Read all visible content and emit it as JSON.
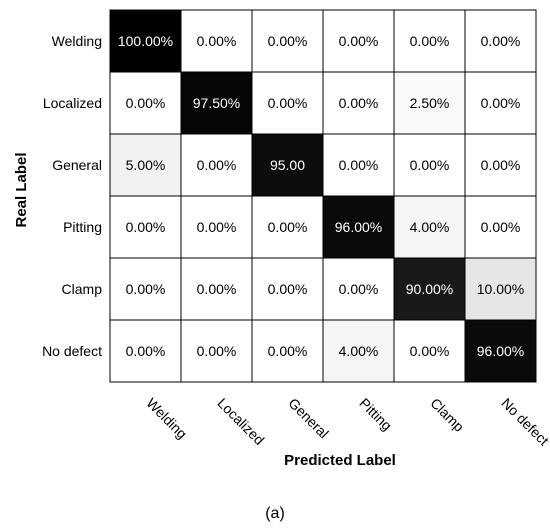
{
  "chart_data": {
    "type": "heatmap",
    "title": "",
    "xlabel": "Predicted Label",
    "ylabel": "Real Label",
    "x_categories": [
      "Welding",
      "Localized",
      "General",
      "Pitting",
      "Clamp",
      "No defect"
    ],
    "y_categories": [
      "Welding",
      "Localized",
      "General",
      "Pitting",
      "Clamp",
      "No defect"
    ],
    "values": [
      [
        100.0,
        0.0,
        0.0,
        0.0,
        0.0,
        0.0
      ],
      [
        0.0,
        97.5,
        0.0,
        0.0,
        2.5,
        0.0
      ],
      [
        5.0,
        0.0,
        95.0,
        0.0,
        0.0,
        0.0
      ],
      [
        0.0,
        0.0,
        0.0,
        96.0,
        4.0,
        0.0
      ],
      [
        0.0,
        0.0,
        0.0,
        0.0,
        90.0,
        10.0
      ],
      [
        0.0,
        0.0,
        0.0,
        4.0,
        0.0,
        96.0
      ]
    ],
    "cell_labels": [
      [
        "100.00%",
        "0.00%",
        "0.00%",
        "0.00%",
        "0.00%",
        "0.00%"
      ],
      [
        "0.00%",
        "97.50%",
        "0.00%",
        "0.00%",
        "2.50%",
        "0.00%"
      ],
      [
        "5.00%",
        "0.00%",
        "95.00",
        "0.00%",
        "0.00%",
        "0.00%"
      ],
      [
        "0.00%",
        "0.00%",
        "0.00%",
        "96.00%",
        "4.00%",
        "0.00%"
      ],
      [
        "0.00%",
        "0.00%",
        "0.00%",
        "0.00%",
        "90.00%",
        "10.00%"
      ],
      [
        "0.00%",
        "0.00%",
        "0.00%",
        "4.00%",
        "0.00%",
        "96.00%"
      ]
    ],
    "color_scale": {
      "low": "#ffffff",
      "high": "#000000"
    },
    "grid": true,
    "legend": false
  },
  "caption": "(a)"
}
